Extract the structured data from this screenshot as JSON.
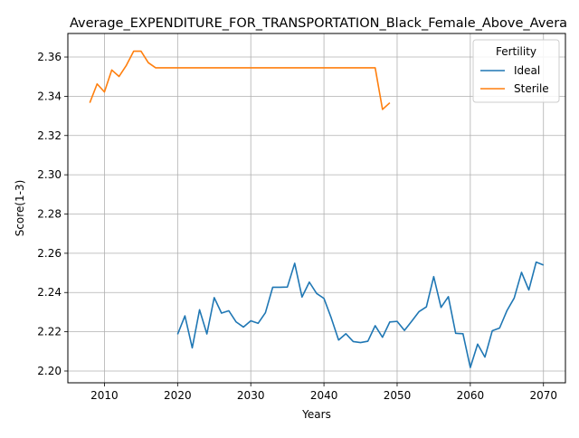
{
  "chart_data": {
    "type": "line",
    "title": "Average_EXPENDITURE_FOR_TRANSPORTATION_Black_Female_Above_Avera",
    "xlabel": "Years",
    "ylabel": "Score(1-3)",
    "xlim": [
      2005,
      2073
    ],
    "ylim": [
      2.194,
      2.372
    ],
    "xticks": [
      2010,
      2020,
      2030,
      2040,
      2050,
      2060,
      2070
    ],
    "yticks": [
      2.2,
      2.22,
      2.24,
      2.26,
      2.28,
      2.3,
      2.32,
      2.34,
      2.36
    ],
    "xtick_labels": [
      "2010",
      "2020",
      "2030",
      "2040",
      "2050",
      "2060",
      "2070"
    ],
    "ytick_labels": [
      "2.20",
      "2.22",
      "2.24",
      "2.26",
      "2.28",
      "2.30",
      "2.32",
      "2.34",
      "2.36"
    ],
    "grid": true,
    "legend": {
      "title": "Fertility",
      "position": "top-right"
    },
    "series": [
      {
        "name": "Ideal",
        "color": "#1f77b4",
        "x": [
          2020,
          2021,
          2022,
          2023,
          2024,
          2025,
          2026,
          2027,
          2028,
          2029,
          2030,
          2031,
          2032,
          2033,
          2034,
          2035,
          2036,
          2037,
          2038,
          2039,
          2040,
          2041,
          2042,
          2043,
          2044,
          2045,
          2046,
          2047,
          2048,
          2049,
          2050,
          2051,
          2052,
          2053,
          2054,
          2055,
          2056,
          2057,
          2058,
          2059,
          2060,
          2061,
          2062,
          2063,
          2064,
          2065,
          2066,
          2067,
          2068,
          2069,
          2070
        ],
        "y": [
          2.2187,
          2.2281,
          2.2118,
          2.2312,
          2.2189,
          2.2374,
          2.2295,
          2.2307,
          2.225,
          2.2224,
          2.2256,
          2.2243,
          2.2297,
          2.2427,
          2.2427,
          2.2428,
          2.2549,
          2.2377,
          2.2453,
          2.2395,
          2.237,
          2.227,
          2.2158,
          2.219,
          2.215,
          2.2145,
          2.2152,
          2.2231,
          2.2172,
          2.225,
          2.2253,
          2.2207,
          2.2254,
          2.2303,
          2.2327,
          2.2481,
          2.2324,
          2.2379,
          2.2192,
          2.219,
          2.2018,
          2.2137,
          2.2071,
          2.2205,
          2.2219,
          2.2307,
          2.2372,
          2.2503,
          2.2413,
          2.2555,
          2.254
        ]
      },
      {
        "name": "Sterile",
        "color": "#ff7f0e",
        "x": [
          2008,
          2009,
          2010,
          2011,
          2012,
          2013,
          2014,
          2015,
          2016,
          2017,
          2018,
          2019,
          2020,
          2021,
          2022,
          2023,
          2024,
          2025,
          2026,
          2027,
          2028,
          2029,
          2030,
          2031,
          2032,
          2033,
          2034,
          2035,
          2036,
          2037,
          2038,
          2039,
          2040,
          2041,
          2042,
          2043,
          2044,
          2045,
          2046,
          2047,
          2048,
          2049
        ],
        "y": [
          2.3367,
          2.3463,
          2.3422,
          2.3534,
          2.3501,
          2.3558,
          2.363,
          2.363,
          2.3571,
          2.3545,
          2.3545,
          2.3545,
          2.3545,
          2.3545,
          2.3545,
          2.3545,
          2.3545,
          2.3545,
          2.3545,
          2.3545,
          2.3545,
          2.3545,
          2.3545,
          2.3545,
          2.3545,
          2.3545,
          2.3545,
          2.3545,
          2.3545,
          2.3545,
          2.3545,
          2.3545,
          2.3545,
          2.3545,
          2.3545,
          2.3545,
          2.3545,
          2.3545,
          2.3545,
          2.3545,
          2.3333,
          2.3367
        ]
      }
    ]
  }
}
